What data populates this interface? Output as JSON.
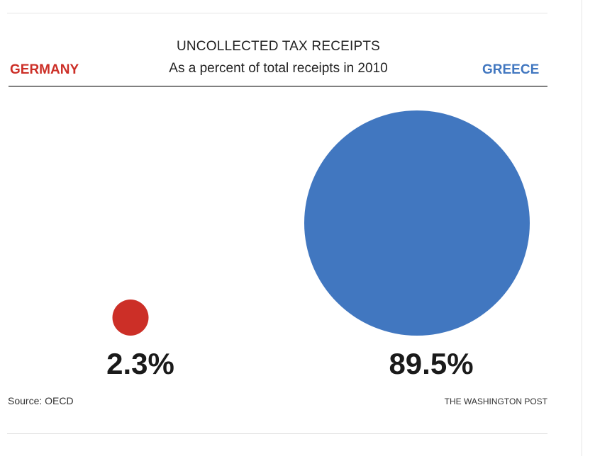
{
  "chart_data": {
    "type": "bubble",
    "title": "UNCOLLECTED TAX RECEIPTS",
    "subtitle": "As a percent of total receipts in 2010",
    "unit": "%",
    "series": [
      {
        "name": "GERMANY",
        "value": 2.3,
        "label": "2.3%",
        "color": "#cc2f27"
      },
      {
        "name": "GREECE",
        "value": 89.5,
        "label": "89.5%",
        "color": "#4177c0"
      }
    ],
    "size_encoding": "circle area proportional to value"
  },
  "footer": {
    "source": "Source: OECD",
    "credit": "THE WASHINGTON POST"
  }
}
